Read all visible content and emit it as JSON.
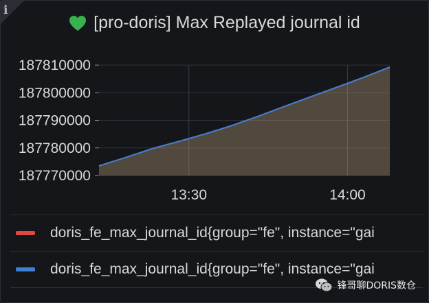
{
  "panel": {
    "title": "[pro-doris] Max Replayed journal id",
    "status_color": "#37b24d",
    "info_glyph": "i"
  },
  "chart_data": {
    "type": "area",
    "title": "[pro-doris] Max Replayed journal id",
    "xlabel": "",
    "ylabel": "",
    "x_ticks": [
      "13:30",
      "14:00"
    ],
    "y_ticks": [
      "187770000",
      "187780000",
      "187790000",
      "187800000",
      "187810000"
    ],
    "ylim": [
      187770000,
      187810000
    ],
    "grid": true,
    "legend_placement": "bottom",
    "series": [
      {
        "name": "doris_fe_max_journal_id{group=\"fe\", instance=\"gai",
        "color": "#e0483e",
        "x": [
          "13:13",
          "13:18",
          "13:23",
          "13:28",
          "13:33",
          "13:38",
          "13:43",
          "13:48",
          "13:53",
          "13:58",
          "14:03",
          "14:08"
        ],
        "values": [
          187773500,
          187776500,
          187779700,
          187782300,
          187785000,
          187788000,
          187791400,
          187795000,
          187798500,
          187802000,
          187805500,
          187809300
        ]
      },
      {
        "name": "doris_fe_max_journal_id{group=\"fe\", instance=\"gai",
        "color": "#3d7fd1",
        "x": [
          "13:13",
          "13:18",
          "13:23",
          "13:28",
          "13:33",
          "13:38",
          "13:43",
          "13:48",
          "13:53",
          "13:58",
          "14:03",
          "14:08"
        ],
        "values": [
          187773500,
          187776500,
          187779700,
          187782300,
          187785000,
          187788000,
          187791400,
          187795000,
          187798500,
          187802000,
          187805500,
          187809300
        ]
      }
    ]
  },
  "watermark": {
    "text": "锋哥聊DORIS数仓",
    "icon": "wechat-icon"
  }
}
